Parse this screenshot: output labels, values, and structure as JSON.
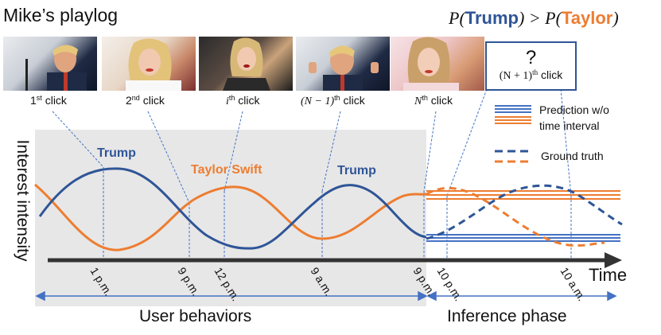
{
  "header": {
    "title": "Mike’s playlog",
    "formula": {
      "p1": "P(",
      "a": "Trump",
      "p2": ") > P(",
      "b": "Taylor",
      "p3": ")"
    }
  },
  "photos": [
    {
      "kind": "trump",
      "subject": "Trump photo"
    },
    {
      "kind": "taylor",
      "subject": "Taylor Swift photo"
    },
    {
      "kind": "dark",
      "subject": "Taylor Swift photo"
    },
    {
      "kind": "trump",
      "subject": "Trump photo"
    },
    {
      "kind": "pink",
      "subject": "Taylor Swift photo"
    }
  ],
  "clicks": [
    {
      "pre": "1",
      "sup": "st",
      "post": " click"
    },
    {
      "pre": "2",
      "sup": "nd",
      "post": " click"
    },
    {
      "pre": "i",
      "sup": "th",
      "post": " click"
    },
    {
      "pre": "(N − 1)",
      "sup": "th",
      "post": " click"
    },
    {
      "pre": "N",
      "sup": "th",
      "post": " click"
    }
  ],
  "query": {
    "mark": "?",
    "label_pre": "(N + 1)",
    "label_sup": "th",
    "label_post": " click"
  },
  "legend": {
    "prediction": "Prediction w/o time interval",
    "prediction_line1": "Prediction w/o",
    "prediction_line2": "time interval",
    "ground_truth": "Ground truth"
  },
  "axis": {
    "ylabel": "Interest intensity",
    "xlabel": "Time"
  },
  "curve_labels": {
    "trump1": "Trump",
    "taylor": "Taylor Swift",
    "trump2": "Trump"
  },
  "ticks": [
    "1 p.m.",
    "9 p.m.",
    "12 p.m.",
    "9 a.m.",
    "9 p.m.",
    "10 p.m.",
    "10 a.m."
  ],
  "sections": {
    "user_behaviors": "User behaviors",
    "inference": "Inference phase"
  },
  "colors": {
    "trump": "#2f5597",
    "taylor": "#ed7d31",
    "shade": "#e7e7e7",
    "axis": "#333333"
  }
}
